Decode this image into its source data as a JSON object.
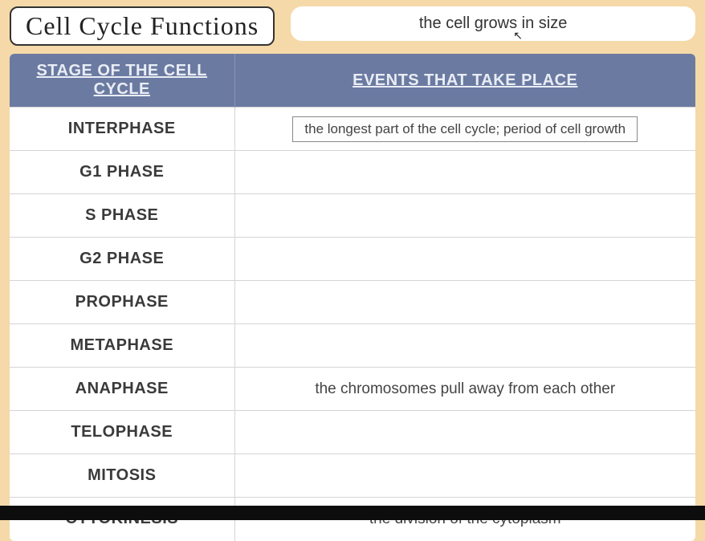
{
  "title": "Cell Cycle Functions",
  "hint_card": "the cell grows in size",
  "header": {
    "stage": "STAGE OF THE CELL CYCLE",
    "events": "EVENTS THAT TAKE PLACE"
  },
  "rows": [
    {
      "stage": "INTERPHASE",
      "event": "the longest part of the cell cycle; period of cell growth",
      "boxed": true
    },
    {
      "stage": "G1 PHASE",
      "event": ""
    },
    {
      "stage": "S PHASE",
      "event": ""
    },
    {
      "stage": "G2 PHASE",
      "event": ""
    },
    {
      "stage": "PROPHASE",
      "event": ""
    },
    {
      "stage": "METAPHASE",
      "event": ""
    },
    {
      "stage": "ANAPHASE",
      "event": "the chromosomes pull away from each other"
    },
    {
      "stage": "TELOPHASE",
      "event": ""
    },
    {
      "stage": "MITOSIS",
      "event": ""
    },
    {
      "stage": "CYTOKINESIS",
      "event": "the division of the cytoplasm"
    }
  ],
  "colors": {
    "page_bg": "#f5d9a8",
    "header_bg": "#6b7aa1",
    "header_text": "#e9edf5",
    "border": "#d5d5d5",
    "card_bg": "#ffffff"
  }
}
